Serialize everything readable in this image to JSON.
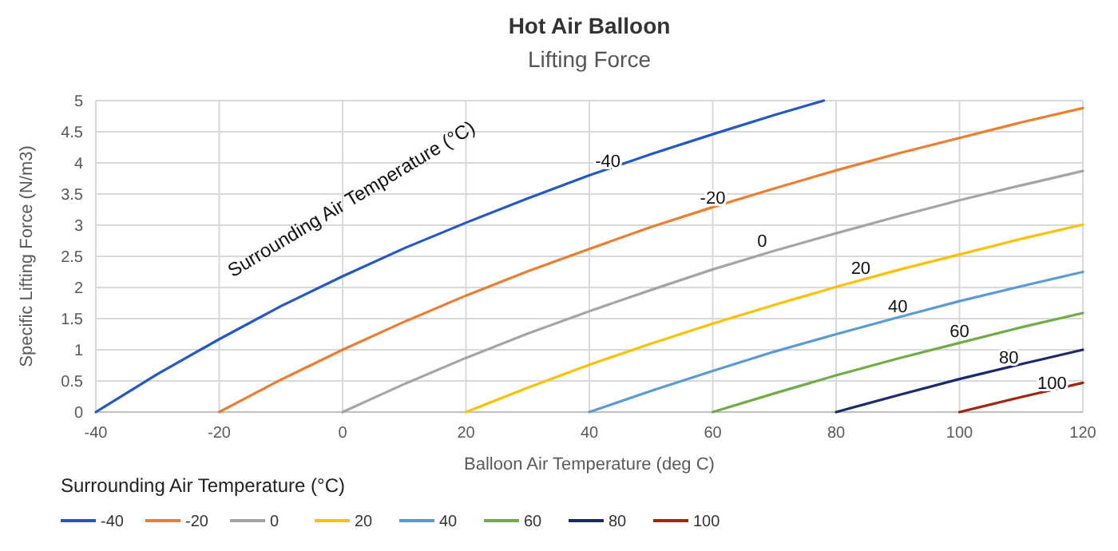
{
  "chart_data": {
    "type": "line",
    "title": "Hot Air Balloon",
    "subtitle": "Lifting Force",
    "xlabel": "Balloon Air Temperature (deg C)",
    "ylabel": "Specific Lifting Force (N/m3)",
    "legend_title": "Surrounding Air Temperature (°C)",
    "xlim": [
      -40,
      120
    ],
    "xticks": [
      -40,
      -20,
      0,
      20,
      40,
      60,
      80,
      100,
      120
    ],
    "ylim": [
      0,
      5
    ],
    "yticks": [
      0,
      0.5,
      1,
      1.5,
      2,
      2.5,
      3,
      3.5,
      4,
      4.5,
      5
    ],
    "grid": true,
    "legend": "bottom",
    "marker": "none",
    "line_style": "solid",
    "series": [
      {
        "name": "-40",
        "color": "#2458c6",
        "x": [
          -40,
          -30,
          -20,
          -10,
          0,
          10,
          20,
          30,
          40,
          50,
          60,
          70,
          78
        ],
        "values": [
          0,
          0.61,
          1.17,
          1.7,
          2.18,
          2.63,
          3.04,
          3.43,
          3.8,
          4.14,
          4.46,
          4.77,
          5
        ]
      },
      {
        "name": "-20",
        "color": "#ed7d31",
        "x": [
          -20,
          -10,
          0,
          10,
          20,
          30,
          40,
          50,
          60,
          70,
          80,
          90,
          100,
          110,
          120
        ],
        "values": [
          0,
          0.52,
          1,
          1.45,
          1.87,
          2.26,
          2.62,
          2.97,
          3.29,
          3.59,
          3.88,
          4.15,
          4.4,
          4.65,
          4.88
        ]
      },
      {
        "name": "0",
        "color": "#a5a5a5",
        "x": [
          0,
          10,
          20,
          30,
          40,
          50,
          60,
          70,
          80,
          90,
          100,
          110,
          120
        ],
        "values": [
          0,
          0.45,
          0.87,
          1.26,
          1.62,
          1.96,
          2.29,
          2.59,
          2.87,
          3.14,
          3.4,
          3.64,
          3.87
        ]
      },
      {
        "name": "20",
        "color": "#ffc000",
        "x": [
          20,
          30,
          40,
          50,
          60,
          70,
          80,
          90,
          100,
          110,
          120
        ],
        "values": [
          0,
          0.39,
          0.76,
          1.1,
          1.42,
          1.72,
          2.01,
          2.28,
          2.53,
          2.78,
          3.01
        ]
      },
      {
        "name": "40",
        "color": "#5b9bd5",
        "x": [
          40,
          50,
          60,
          70,
          80,
          90,
          100,
          110,
          120
        ],
        "values": [
          0,
          0.34,
          0.66,
          0.97,
          1.25,
          1.52,
          1.78,
          2.02,
          2.25
        ]
      },
      {
        "name": "60",
        "color": "#70ad47",
        "x": [
          60,
          70,
          80,
          90,
          100,
          110,
          120
        ],
        "values": [
          0,
          0.3,
          0.59,
          0.86,
          1.11,
          1.36,
          1.59
        ]
      },
      {
        "name": "80",
        "color": "#1a2a6c",
        "x": [
          80,
          90,
          100,
          110,
          120
        ],
        "values": [
          0,
          0.27,
          0.53,
          0.77,
          1
        ]
      },
      {
        "name": "100",
        "color": "#a0260f",
        "x": [
          100,
          110,
          120
        ],
        "values": [
          0,
          0.24,
          0.47
        ]
      }
    ],
    "annotations": [
      "Surrounding Air Temperature (°C)",
      {
        "text": "-40",
        "x": 43,
        "y": 3.83
      },
      {
        "text": "-20",
        "x": 60,
        "y": 3.25
      },
      {
        "text": "0",
        "x": 68,
        "y": 2.55
      },
      {
        "text": "20",
        "x": 84,
        "y": 2.12
      },
      {
        "text": "40",
        "x": 90,
        "y": 1.5
      },
      {
        "text": "60",
        "x": 100,
        "y": 1.1
      },
      {
        "text": "80",
        "x": 108,
        "y": 0.68
      },
      {
        "text": "100",
        "x": 115,
        "y": 0.27
      }
    ]
  }
}
